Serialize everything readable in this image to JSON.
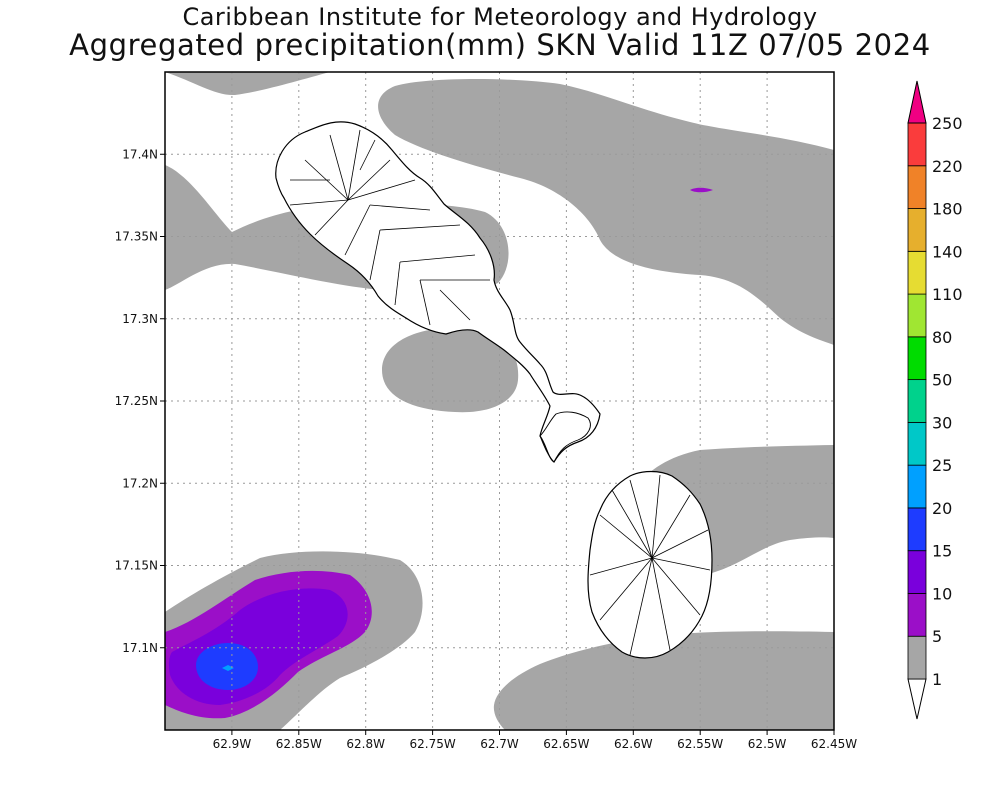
{
  "title": {
    "line1": "Caribbean Institute for Meteorology and Hydrology",
    "line2": "Aggregated precipitation(mm) SKN Valid 11Z 07/05 2024"
  },
  "map": {
    "lon_range": [
      -62.95,
      -62.45
    ],
    "lat_range": [
      17.05,
      17.45
    ],
    "grid": true,
    "x_ticks": [
      {
        "value": -62.9,
        "label": "62.9W"
      },
      {
        "value": -62.85,
        "label": "62.85W"
      },
      {
        "value": -62.8,
        "label": "62.8W"
      },
      {
        "value": -62.75,
        "label": "62.75W"
      },
      {
        "value": -62.7,
        "label": "62.7W"
      },
      {
        "value": -62.65,
        "label": "62.65W"
      },
      {
        "value": -62.6,
        "label": "62.6W"
      },
      {
        "value": -62.55,
        "label": "62.55W"
      },
      {
        "value": -62.5,
        "label": "62.5W"
      },
      {
        "value": -62.45,
        "label": "62.45W"
      }
    ],
    "y_ticks": [
      {
        "value": 17.4,
        "label": "17.4N"
      },
      {
        "value": 17.35,
        "label": "17.35N"
      },
      {
        "value": 17.3,
        "label": "17.3N"
      },
      {
        "value": 17.25,
        "label": "17.25N"
      },
      {
        "value": 17.2,
        "label": "17.2N"
      },
      {
        "value": 17.15,
        "label": "17.15N"
      },
      {
        "value": 17.1,
        "label": "17.1N"
      }
    ]
  },
  "colorbar": {
    "levels": [
      {
        "label": "1",
        "color": "#ffffff"
      },
      {
        "label": "5",
        "color": "#a6a6a6"
      },
      {
        "label": "10",
        "color": "#9b0fc8"
      },
      {
        "label": "15",
        "color": "#7a00dc"
      },
      {
        "label": "20",
        "color": "#1e3cff"
      },
      {
        "label": "25",
        "color": "#00a0ff"
      },
      {
        "label": "30",
        "color": "#00c8c8"
      },
      {
        "label": "50",
        "color": "#00d28c"
      },
      {
        "label": "80",
        "color": "#00dc00"
      },
      {
        "label": "110",
        "color": "#a0e632"
      },
      {
        "label": "140",
        "color": "#e6dc32"
      },
      {
        "label": "180",
        "color": "#e6af2d"
      },
      {
        "label": "220",
        "color": "#f08228"
      },
      {
        "label": "250",
        "color": "#fa3c3c"
      }
    ],
    "top_color": "#f00082"
  },
  "colors": {
    "light_rain": "#a6a6a6",
    "purple": "#9b0fc8",
    "violet": "#7a00dc",
    "blue": "#1e3cff",
    "cyan": "#00a0ff",
    "land_fill": "#ffffff",
    "coast": "#000000"
  }
}
